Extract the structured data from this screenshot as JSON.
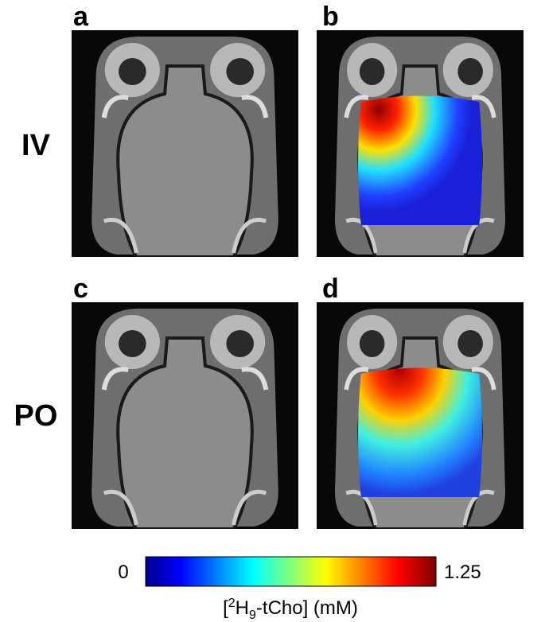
{
  "panels": [
    {
      "label": "a"
    },
    {
      "label": "b"
    },
    {
      "label": "c"
    },
    {
      "label": "d"
    }
  ],
  "rows": [
    {
      "label": "IV"
    },
    {
      "label": "PO"
    }
  ],
  "colorbar": {
    "min": 0,
    "max": 1.25,
    "label": {
      "open": "[",
      "superscript": "2",
      "element": "H",
      "subscript": "9",
      "rest": "-tCho] (mM)"
    }
  }
}
